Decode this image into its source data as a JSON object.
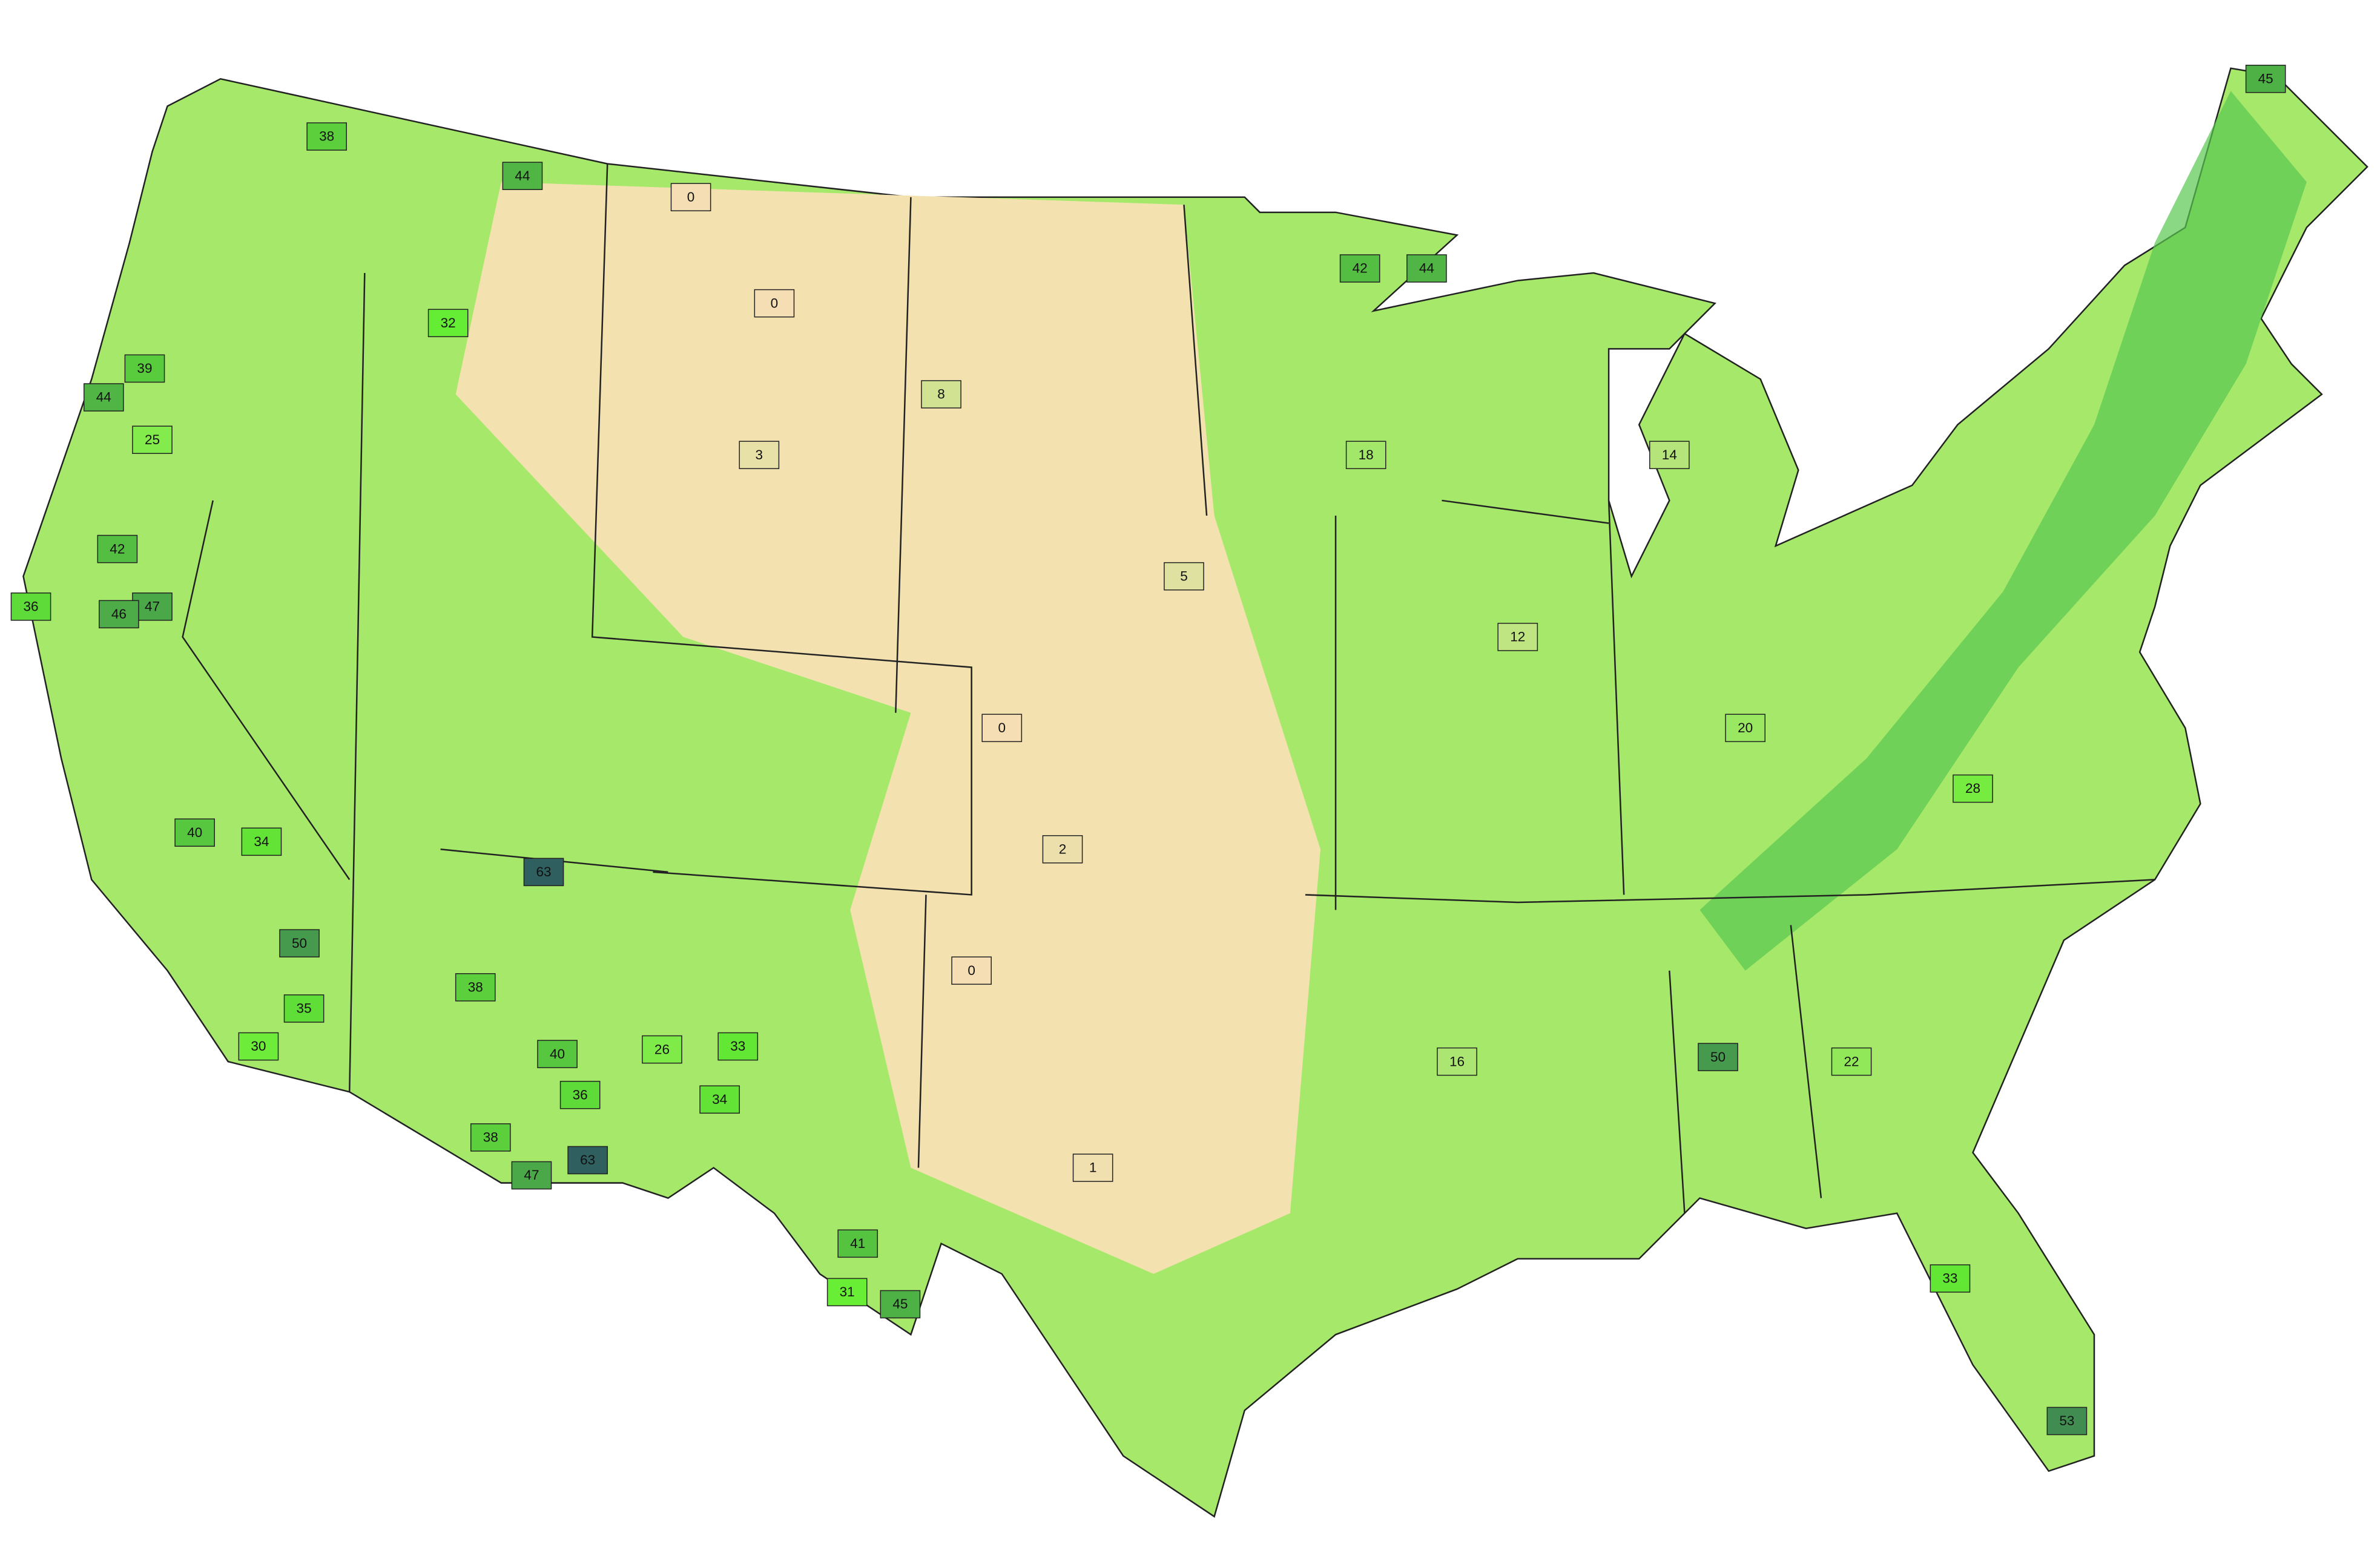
{
  "map": {
    "type": "choropleth",
    "county_values": [
      63,
      63,
      50,
      38,
      47,
      45,
      41,
      31,
      42,
      44,
      44,
      38,
      35,
      34,
      40,
      39,
      44,
      47,
      46,
      42,
      40,
      38,
      36,
      45,
      50,
      53,
      33,
      34,
      26,
      32,
      25,
      36,
      30,
      33,
      0,
      0,
      0,
      0,
      1,
      2,
      3,
      12,
      20,
      28,
      16,
      22,
      18,
      14,
      5,
      8
    ]
  }
}
